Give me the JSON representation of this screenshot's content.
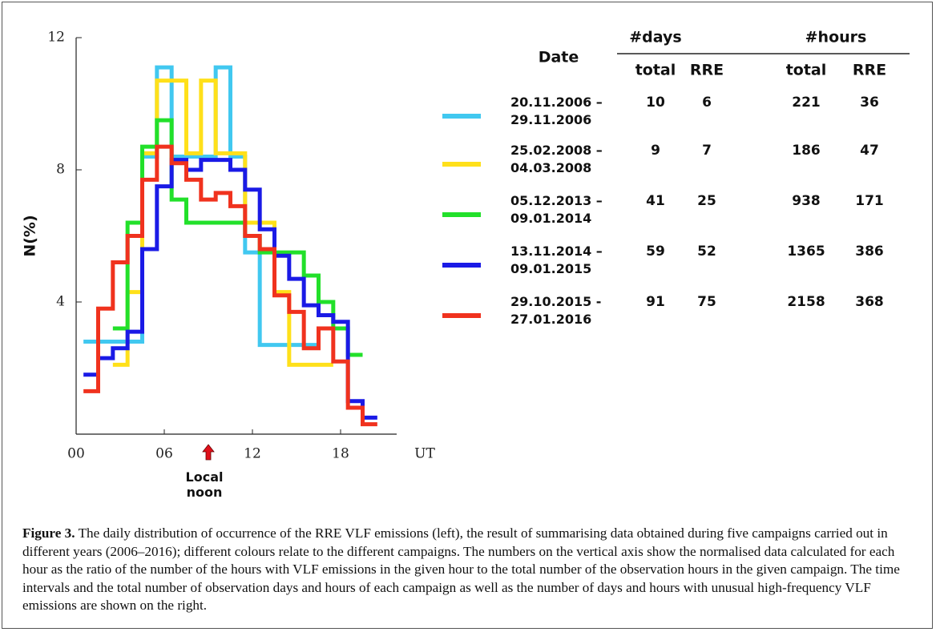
{
  "chart_data": {
    "type": "step",
    "x": [
      1,
      2,
      3,
      4,
      5,
      6,
      7,
      8,
      9,
      10,
      11,
      12,
      13,
      14,
      15,
      16,
      17,
      18,
      19,
      20
    ],
    "xlim": [
      0,
      24
    ],
    "xticks": [
      {
        "value": 0,
        "label": "00"
      },
      {
        "value": 6,
        "label": "06"
      },
      12,
      18
    ],
    "xlabel": "UT",
    "ylabel": "N(%)",
    "ylim": [
      0,
      12
    ],
    "yticks": [
      4,
      8,
      12
    ],
    "annotation": {
      "x": 9,
      "text": "Local noon"
    },
    "series": [
      {
        "name": "20.11.2006 – 29.11.2006",
        "color": "#41c8f0",
        "values": [
          2.8,
          2.8,
          2.8,
          2.8,
          8.4,
          11.1,
          8.4,
          8.4,
          8.4,
          11.1,
          8.4,
          5.5,
          2.7,
          2.7,
          2.7,
          2.7,
          null,
          null,
          null,
          null
        ]
      },
      {
        "name": "25.02.2008 – 04.03.2008",
        "color": "#ffe01a",
        "values": [
          null,
          null,
          2.1,
          4.3,
          8.5,
          10.7,
          10.7,
          8.5,
          10.7,
          8.5,
          8.5,
          6.4,
          6.4,
          4.3,
          2.1,
          2.1,
          2.1,
          null,
          null,
          null
        ]
      },
      {
        "name": "05.12.2013 – 09.01.2014",
        "color": "#22e02a",
        "values": [
          null,
          null,
          3.2,
          6.4,
          8.7,
          9.5,
          7.1,
          6.4,
          6.4,
          6.4,
          6.4,
          6.0,
          5.5,
          5.5,
          5.5,
          4.8,
          4.0,
          3.2,
          2.4,
          null
        ]
      },
      {
        "name": "13.11.2014 – 09.01.2015",
        "color": "#1a1ae6",
        "values": [
          1.8,
          2.3,
          2.6,
          3.1,
          5.6,
          7.5,
          8.3,
          8.0,
          8.3,
          8.3,
          8.0,
          7.4,
          6.2,
          5.4,
          4.7,
          3.9,
          3.6,
          3.4,
          1.0,
          0.5
        ]
      },
      {
        "name": "29.10.2015 - 27.01.2016",
        "color": "#f0321e",
        "values": [
          1.3,
          3.8,
          5.2,
          6.0,
          7.7,
          8.7,
          8.2,
          7.7,
          7.1,
          7.3,
          6.9,
          6.0,
          5.6,
          4.2,
          3.7,
          2.6,
          3.2,
          2.2,
          0.8,
          0.3
        ]
      }
    ]
  },
  "table": {
    "date_header": "Date",
    "group_headers": [
      "#days",
      "#hours"
    ],
    "sub_headers": [
      "total",
      "RRE",
      "total",
      "RRE"
    ],
    "rows": [
      [
        10,
        6,
        221,
        36
      ],
      [
        9,
        7,
        186,
        47
      ],
      [
        41,
        25,
        938,
        171
      ],
      [
        59,
        52,
        1365,
        386
      ],
      [
        91,
        75,
        2158,
        368
      ]
    ]
  },
  "caption": {
    "label": "Figure 3.",
    "text": "The daily distribution of occurrence of the RRE VLF emissions (left), the result of summarising data obtained during five campaigns carried out in different years (2006–2016); different colours relate to the different campaigns. The numbers on the vertical axis show the normalised data calculated for each hour as the ratio of the number of the hours with VLF emissions in the given hour to the total number of the observation hours in the given campaign. The time intervals and the total number of observation days and hours of each campaign as well as the number of days and hours with unusual high-frequency VLF emissions are shown on the right."
  }
}
